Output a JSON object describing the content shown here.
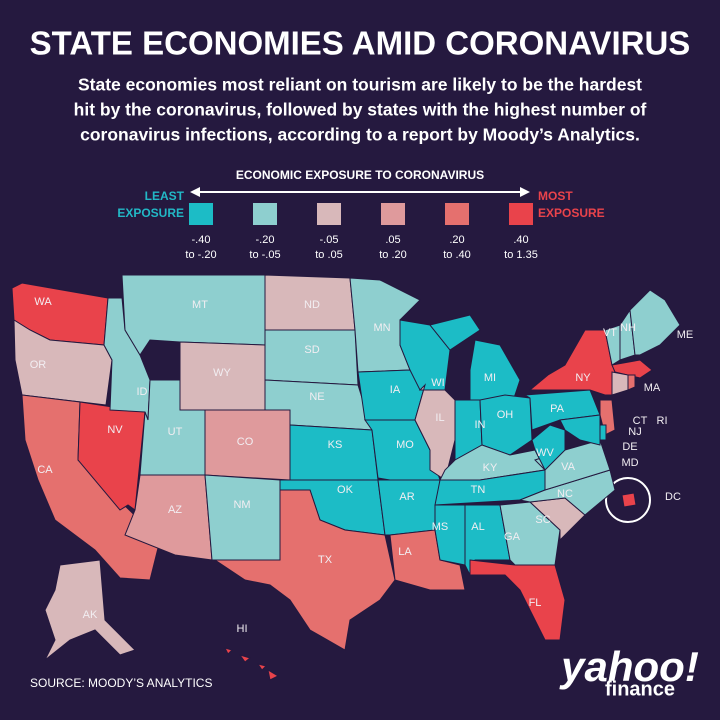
{
  "header": {
    "title": "STATE ECONOMIES AMID CORONAVIRUS",
    "subtitle": [
      "State economies most reliant on tourism are likely to be the hardest",
      "hit by the coronavirus, followed by states with the highest number of",
      "coronavirus infections, according to a report by Moody’s Analytics."
    ]
  },
  "legend": {
    "title": "ECONOMIC EXPOSURE TO CORONAVIRUS",
    "least": [
      "LEAST",
      "EXPOSURE"
    ],
    "least_color": "#22b8c6",
    "most": [
      "MOST",
      "EXPOSURE"
    ],
    "most_color": "#e9434b",
    "items": [
      {
        "color": "#1cbcc6",
        "range": [
          "-.40",
          "to -.20"
        ]
      },
      {
        "color": "#8ecfcf",
        "range": [
          "-.20",
          "to -.05"
        ]
      },
      {
        "color": "#d8b8ba",
        "range": [
          "-.05",
          "to .05"
        ]
      },
      {
        "color": "#df9a9c",
        "range": [
          ".05",
          "to .20"
        ]
      },
      {
        "color": "#e5706e",
        "range": [
          ".20",
          "to .40"
        ]
      },
      {
        "color": "#e9434b",
        "range": [
          ".40",
          "to 1.35"
        ]
      }
    ]
  },
  "states": [
    {
      "label": "WA",
      "color": "#e9434b"
    },
    {
      "label": "OR",
      "color": "#d8b8ba"
    },
    {
      "label": "CA",
      "color": "#e5706e"
    },
    {
      "label": "NV",
      "color": "#e9434b"
    },
    {
      "label": "ID",
      "color": "#8ecfcf"
    },
    {
      "label": "MT",
      "color": "#8ecfcf"
    },
    {
      "label": "WY",
      "color": "#d8b8ba"
    },
    {
      "label": "UT",
      "color": "#8ecfcf"
    },
    {
      "label": "CO",
      "color": "#df9a9c"
    },
    {
      "label": "AZ",
      "color": "#df9a9c"
    },
    {
      "label": "NM",
      "color": "#8ecfcf"
    },
    {
      "label": "ND",
      "color": "#d8b8ba"
    },
    {
      "label": "SD",
      "color": "#8ecfcf"
    },
    {
      "label": "NE",
      "color": "#8ecfcf"
    },
    {
      "label": "KS",
      "color": "#1cbcc6"
    },
    {
      "label": "OK",
      "color": "#1cbcc6"
    },
    {
      "label": "TX",
      "color": "#e5706e"
    },
    {
      "label": "MN",
      "color": "#8ecfcf"
    },
    {
      "label": "IA",
      "color": "#1cbcc6"
    },
    {
      "label": "MO",
      "color": "#1cbcc6"
    },
    {
      "label": "AR",
      "color": "#1cbcc6"
    },
    {
      "label": "LA",
      "color": "#e5706e"
    },
    {
      "label": "WI",
      "color": "#1cbcc6"
    },
    {
      "label": "IL",
      "color": "#d8b8ba"
    },
    {
      "label": "MI",
      "color": "#1cbcc6"
    },
    {
      "label": "IN",
      "color": "#1cbcc6"
    },
    {
      "label": "OH",
      "color": "#1cbcc6"
    },
    {
      "label": "KY",
      "color": "#8ecfcf"
    },
    {
      "label": "TN",
      "color": "#1cbcc6"
    },
    {
      "label": "MS",
      "color": "#1cbcc6"
    },
    {
      "label": "AL",
      "color": "#1cbcc6"
    },
    {
      "label": "GA",
      "color": "#8ecfcf"
    },
    {
      "label": "FL",
      "color": "#e9434b"
    },
    {
      "label": "SC",
      "color": "#d8b8ba"
    },
    {
      "label": "NC",
      "color": "#8ecfcf"
    },
    {
      "label": "VA",
      "color": "#8ecfcf"
    },
    {
      "label": "WV",
      "color": "#1cbcc6"
    },
    {
      "label": "PA",
      "color": "#1cbcc6"
    },
    {
      "label": "NY",
      "color": "#e9434b"
    },
    {
      "label": "VT",
      "color": "#8ecfcf"
    },
    {
      "label": "NH",
      "color": "#8ecfcf"
    },
    {
      "label": "ME",
      "color": "#8ecfcf"
    },
    {
      "label": "MA",
      "color": "#e9434b"
    },
    {
      "label": "CT",
      "color": "#d8b8ba"
    },
    {
      "label": "RI",
      "color": "#e5706e"
    },
    {
      "label": "NJ",
      "color": "#e5706e"
    },
    {
      "label": "DE",
      "color": "#1cbcc6"
    },
    {
      "label": "MD",
      "color": "#1cbcc6"
    },
    {
      "label": "AK",
      "color": "#d8b8ba"
    },
    {
      "label": "HI",
      "color": "#e9434b"
    },
    {
      "label": "DC",
      "color": "#e9434b"
    }
  ],
  "source": "SOURCE:  MOODY’S ANALYTICS",
  "brand": {
    "name": "yahoo!",
    "product": "finance"
  }
}
